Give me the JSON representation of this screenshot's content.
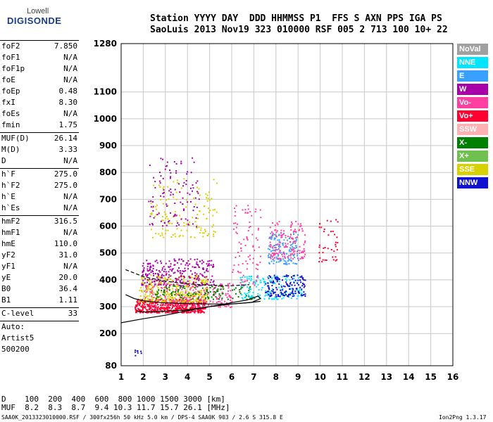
{
  "logo": {
    "top": "Lowell",
    "bottom": "DIGISONDE"
  },
  "header": {
    "row1": "Station YYYY DAY  DDD HHMMSS P1  FFS S AXN PPS IGA PS",
    "row2": "SaoLuis 2013 Nov19 323 010000 RSF 005 2 713 100 10+ 22"
  },
  "params": {
    "group1": [
      {
        "name": "foF2",
        "value": "7.850"
      },
      {
        "name": "foF1",
        "value": "N/A"
      },
      {
        "name": "foF1p",
        "value": "N/A"
      },
      {
        "name": "foE",
        "value": "N/A"
      },
      {
        "name": "foEp",
        "value": "0.48"
      },
      {
        "name": "fxI",
        "value": "8.30"
      },
      {
        "name": "foEs",
        "value": "N/A"
      },
      {
        "name": "fmin",
        "value": "1.75"
      }
    ],
    "group2": [
      {
        "name": "MUF(D)",
        "value": "26.14"
      },
      {
        "name": "M(D)",
        "value": "3.33"
      },
      {
        "name": "D",
        "value": "N/A"
      }
    ],
    "group3": [
      {
        "name": "h`F",
        "value": "275.0"
      },
      {
        "name": "h`F2",
        "value": "275.0"
      },
      {
        "name": "h`E",
        "value": "N/A"
      },
      {
        "name": "h`Es",
        "value": "N/A"
      }
    ],
    "group4": [
      {
        "name": "hmF2",
        "value": "316.5"
      },
      {
        "name": "hmF1",
        "value": "N/A"
      },
      {
        "name": "hmE",
        "value": "110.0"
      },
      {
        "name": "yF2",
        "value": "31.0"
      },
      {
        "name": "yF1",
        "value": "N/A"
      },
      {
        "name": "yE",
        "value": "20.0"
      },
      {
        "name": "B0",
        "value": "36.4"
      },
      {
        "name": "B1",
        "value": "1.11"
      }
    ],
    "clevel": {
      "name": "C-level",
      "value": "33"
    },
    "auto": [
      "Auto:",
      "Artist5",
      "500200"
    ]
  },
  "legend": [
    {
      "label": "NoVal",
      "color": "#a0a0a0"
    },
    {
      "label": "NNE",
      "color": "#00e5ff"
    },
    {
      "label": "E",
      "color": "#3aa0ff"
    },
    {
      "label": "W",
      "color": "#a800a8"
    },
    {
      "label": "Vo-",
      "color": "#ff40a0"
    },
    {
      "label": "Vo+",
      "color": "#ff0030"
    },
    {
      "label": "SSW",
      "color": "#ffb0b0"
    },
    {
      "label": "X-",
      "color": "#008000"
    },
    {
      "label": "X+",
      "color": "#70c050"
    },
    {
      "label": "SSE",
      "color": "#d8d000"
    },
    {
      "label": "NNW",
      "color": "#1010d0"
    }
  ],
  "muf_table": {
    "row_d": "D    100  200  400  600  800 1000 1500 3000 [km]",
    "row_muf": "MUF  8.2  8.3  8.7  9.4 10.3 11.7 15.7 26.1 [MHz]"
  },
  "footer": {
    "left": "SAA0K_2013323010000.RSF / 300fx256h 50 kHz 5.0 km / DPS-4 SAA0K 903 / 2.6 S 315.8 E",
    "right": "Ion2Png 1.3.17"
  },
  "chart_data": {
    "type": "scatter",
    "title": "",
    "xlabel": "",
    "ylabel": "",
    "xlim": [
      1,
      16
    ],
    "ylim": [
      80,
      1280
    ],
    "x_ticks": [
      1,
      2,
      3,
      4,
      5,
      6,
      7,
      8,
      9,
      10,
      11,
      12,
      13,
      14,
      15,
      16
    ],
    "y_ticks": [
      80,
      200,
      300,
      400,
      500,
      600,
      700,
      800,
      900,
      1000,
      1100,
      1280
    ],
    "grid": true,
    "legend_position": "right",
    "clusters": [
      {
        "color": "#ff0030",
        "x_range": [
          1.6,
          4.8
        ],
        "y_range": [
          280,
          330
        ],
        "count": 520
      },
      {
        "color": "#d8d000",
        "x_range": [
          1.8,
          4.9
        ],
        "y_range": [
          320,
          420
        ],
        "count": 360
      },
      {
        "color": "#a800a8",
        "x_range": [
          1.9,
          5.2
        ],
        "y_range": [
          380,
          480
        ],
        "count": 260
      },
      {
        "color": "#ff40a0",
        "x_range": [
          2.0,
          6.0
        ],
        "y_range": [
          300,
          390
        ],
        "count": 200
      },
      {
        "color": "#008000",
        "x_range": [
          2.5,
          7.0
        ],
        "y_range": [
          330,
          380
        ],
        "count": 120
      },
      {
        "color": "#00e5ff",
        "x_range": [
          6.3,
          9.2
        ],
        "y_range": [
          330,
          420
        ],
        "count": 160
      },
      {
        "color": "#1010d0",
        "x_range": [
          7.5,
          9.3
        ],
        "y_range": [
          340,
          420
        ],
        "count": 150
      },
      {
        "color": "#3aa0ff",
        "x_range": [
          7.6,
          9.0
        ],
        "y_range": [
          460,
          580
        ],
        "count": 140
      },
      {
        "color": "#ff40a0",
        "x_range": [
          7.7,
          9.3
        ],
        "y_range": [
          480,
          620
        ],
        "count": 150
      },
      {
        "color": "#d8d000",
        "x_range": [
          2.3,
          5.3
        ],
        "y_range": [
          560,
          780
        ],
        "count": 140
      },
      {
        "color": "#a800a8",
        "x_range": [
          2.2,
          4.5
        ],
        "y_range": [
          600,
          860
        ],
        "count": 110
      },
      {
        "color": "#ff0030",
        "x_range": [
          9.9,
          10.8
        ],
        "y_range": [
          470,
          640
        ],
        "count": 40
      },
      {
        "color": "#ff40a0",
        "x_range": [
          6.0,
          7.3
        ],
        "y_range": [
          380,
          680
        ],
        "count": 90
      },
      {
        "color": "#1010d0",
        "x_range": [
          1.6,
          1.9
        ],
        "y_range": [
          120,
          140
        ],
        "count": 8
      }
    ],
    "traces": [
      {
        "name": "",
        "color": "#000000",
        "points": [
          [
            1.0,
            240
          ],
          [
            2.0,
            255
          ],
          [
            3.0,
            268
          ],
          [
            4.0,
            285
          ],
          [
            5.0,
            300
          ],
          [
            6.0,
            315
          ],
          [
            6.7,
            325
          ],
          [
            7.2,
            340
          ],
          [
            7.3,
            330
          ],
          [
            6.9,
            316
          ],
          [
            6.0,
            310
          ],
          [
            5.0,
            300
          ],
          [
            4.0,
            288
          ],
          [
            3.0,
            283
          ],
          [
            2.0,
            280
          ],
          [
            1.7,
            285
          ]
        ]
      },
      {
        "name": "",
        "color": "#000000",
        "points": [
          [
            1.2,
            345
          ],
          [
            1.6,
            330
          ],
          [
            2.0,
            322
          ],
          [
            2.8,
            315
          ],
          [
            3.8,
            312
          ],
          [
            5.0,
            310
          ],
          [
            6.0,
            310
          ],
          [
            6.8,
            315
          ],
          [
            7.3,
            320
          ]
        ]
      },
      {
        "name": "",
        "color": "#000000",
        "dashed": true,
        "points": [
          [
            1.2,
            438
          ],
          [
            2.0,
            412
          ],
          [
            3.0,
            395
          ],
          [
            4.0,
            385
          ],
          [
            5.0,
            380
          ],
          [
            6.0,
            378
          ],
          [
            6.8,
            382
          ]
        ]
      }
    ]
  }
}
